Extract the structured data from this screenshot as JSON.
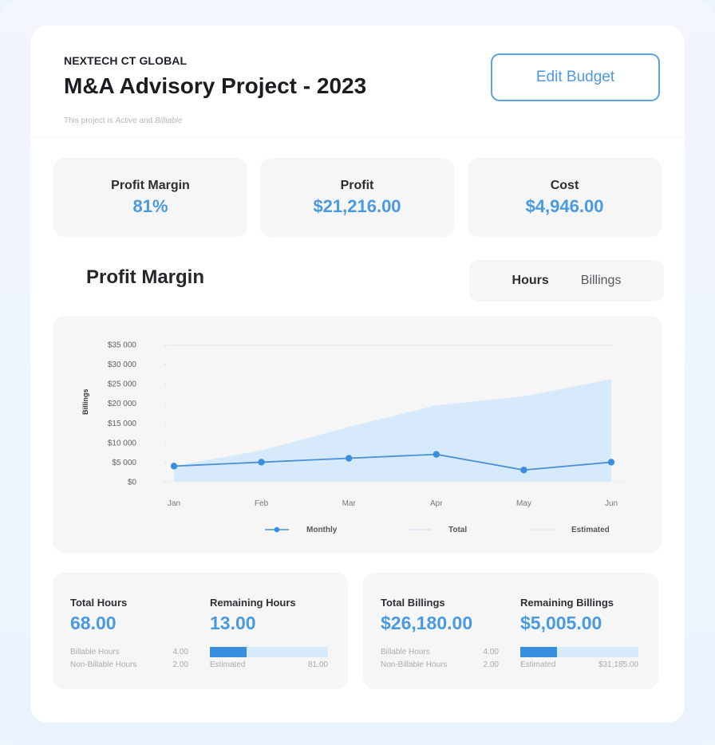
{
  "header": {
    "company": "NEXTECH CT GLOBAL",
    "title": "M&A Advisory Project - 2023",
    "status_prefix": "This project is ",
    "status_active": "Active",
    "status_and": " and ",
    "status_billable": "Billiable",
    "edit_button": "Edit Budget"
  },
  "stats": [
    {
      "label": "Profit Margin",
      "value": "81%"
    },
    {
      "label": "Profit",
      "value": "$21,216.00"
    },
    {
      "label": "Cost",
      "value": "$4,946.00"
    }
  ],
  "section": {
    "title": "Profit Margin",
    "toggle": [
      {
        "label": "Hours",
        "active": true
      },
      {
        "label": "Billings",
        "active": false
      }
    ]
  },
  "colors": {
    "accent": "#4a9ae2",
    "line": "#3a8ee0",
    "area": "#d6eafc",
    "panel": "#f6f6f7",
    "background": "#eef4fd"
  },
  "chart_data": {
    "type": "line",
    "title": "Profit Margin",
    "xlabel": "",
    "ylabel": "Billings",
    "categories": [
      "Jan",
      "Feb",
      "Mar",
      "Apr",
      "May",
      "Jun"
    ],
    "y_ticks": [
      "$35 000",
      "$30 000",
      "$25 000",
      "$20 000",
      "$15 000",
      "$10 000",
      "$5 000",
      "$0"
    ],
    "ylim": [
      0,
      35000
    ],
    "grid": false,
    "legend_position": "bottom",
    "series": [
      {
        "name": "Monthly",
        "type": "line",
        "values": [
          4000,
          5000,
          6000,
          7000,
          3000,
          5000
        ]
      },
      {
        "name": "Total",
        "type": "area",
        "values": [
          4000,
          8000,
          14000,
          19500,
          21800,
          26200
        ]
      },
      {
        "name": "Estimated",
        "type": "line",
        "values": [
          35000,
          35000,
          35000,
          35000,
          35000,
          35000
        ]
      }
    ]
  },
  "hours_card": {
    "total_label": "Total Hours",
    "total_value": "68.00",
    "remaining_label": "Remaining Hours",
    "remaining_value": "13.00",
    "rows": [
      {
        "label": "Billable Hours",
        "value": "4.00"
      },
      {
        "label": "Non-Billable Hours",
        "value": "2.00"
      }
    ],
    "progress_percent": 31,
    "estimated_label": "Estimated",
    "estimated_value": "81.00"
  },
  "billings_card": {
    "total_label": "Total Billings",
    "total_value": "$26,180.00",
    "remaining_label": "Remaining Billings",
    "remaining_value": "$5,005.00",
    "rows": [
      {
        "label": "Billable Hours",
        "value": "4.00"
      },
      {
        "label": "Non-Billable Hours",
        "value": "2.00"
      }
    ],
    "progress_percent": 31,
    "estimated_label": "Estimated",
    "estimated_value": "$31,185.00"
  }
}
